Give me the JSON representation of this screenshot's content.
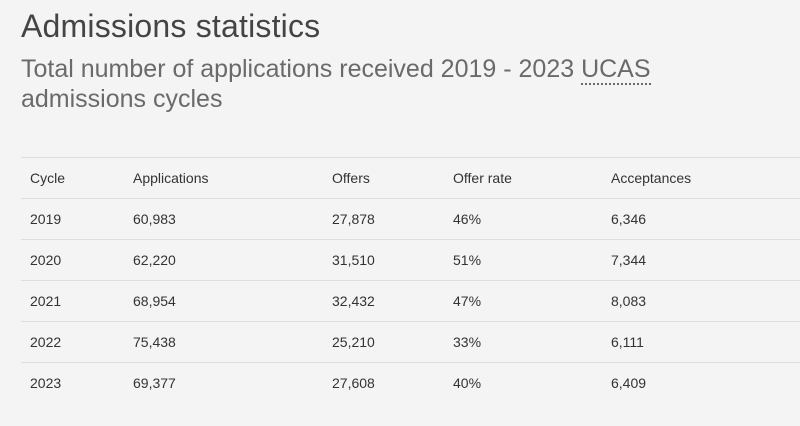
{
  "header": {
    "title": "Admissions statistics",
    "subtitle_pre": "Total number of applications received 2019 - 2023 ",
    "subtitle_abbr": "UCAS",
    "subtitle_post": " admissions cycles"
  },
  "table": {
    "columns": [
      "Cycle",
      "Applications",
      "Offers",
      "Offer rate",
      "Acceptances"
    ],
    "rows": [
      [
        "2019",
        "60,983",
        "27,878",
        "46%",
        "6,346"
      ],
      [
        "2020",
        "62,220",
        "31,510",
        "51%",
        "7,344"
      ],
      [
        "2021",
        "68,954",
        "32,432",
        "47%",
        "8,083"
      ],
      [
        "2022",
        "75,438",
        "25,210",
        "33%",
        "6,111"
      ],
      [
        "2023",
        "69,377",
        "27,608",
        "40%",
        "6,409"
      ]
    ]
  }
}
